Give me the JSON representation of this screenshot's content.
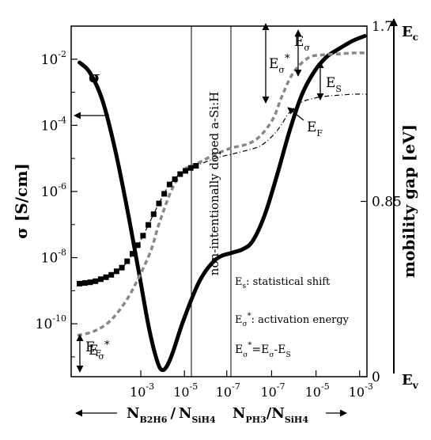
{
  "chart_data": {
    "type": "line",
    "xlabel_left": {
      "main": "N",
      "sub": "B2H6",
      "sep": "/",
      "main2": "N",
      "sub2": "SiH4"
    },
    "xlabel_right": {
      "main": "N",
      "sub": "PH3",
      "sep": "/",
      "main2": "N",
      "sub2": "SiH4"
    },
    "ylabel_left": "σ [S/cm]",
    "ylabel_right": "mobility gap [eV]",
    "left_axis": {
      "scale": "log",
      "ylim_exponent": [
        -11.6,
        -1
      ],
      "ticks": [
        {
          "base": "10",
          "exp": "-2",
          "value": -2
        },
        {
          "base": "10",
          "exp": "-4",
          "value": -4
        },
        {
          "base": "10",
          "exp": "-6",
          "value": -6
        },
        {
          "base": "10",
          "exp": "-8",
          "value": -8
        },
        {
          "base": "10",
          "exp": "-10",
          "value": -10
        }
      ]
    },
    "right_axis": {
      "ylim": [
        0,
        1.7
      ],
      "ticks": [
        {
          "label": "1.7",
          "value": 1.7
        },
        {
          "label": "0.85",
          "value": 0.85
        },
        {
          "label": "0",
          "value": 0
        }
      ]
    },
    "x_axis": {
      "position_scale": [
        0,
        10
      ],
      "ticks": [
        {
          "base": "10",
          "exp": "-3",
          "pos": 1.03
        },
        {
          "base": "10",
          "exp": "-5",
          "pos": 2.08
        },
        {
          "base": "10",
          "exp": "-7",
          "pos": 3.1
        },
        {
          "base": "10",
          "exp": "-7",
          "pos": 4.18
        },
        {
          "base": "10",
          "exp": "-5",
          "pos": 5.25
        },
        {
          "base": "10",
          "exp": "-3",
          "pos": 6.3
        }
      ]
    },
    "mobility_edges": {
      "top": {
        "main": "E",
        "sub": "c"
      },
      "bottom": {
        "main": "E",
        "sub": "v"
      }
    },
    "region_label": "non-intentionally doped a-Si:H",
    "annotations": {
      "sigma": "σ",
      "ef_left": {
        "main": "E",
        "sub": "F"
      },
      "ef_right": {
        "main": "E",
        "sub": "F"
      },
      "es": {
        "main": "E",
        "sub": "S"
      },
      "esigma_top": {
        "main": "E",
        "sub": "σ"
      },
      "esigma_star_top": {
        "main": "E",
        "sub": "σ",
        "sup": "*"
      },
      "esigma_star_left": {
        "main": "E",
        "sub": "σ",
        "sup": "*"
      }
    },
    "legend": {
      "line1": {
        "main": "E",
        "sub": "s",
        "text": ": statistical shift"
      },
      "line2": {
        "main": "E",
        "sub": "σ",
        "sup": "*",
        "text": ": activation energy"
      },
      "line3": {
        "a": "E",
        "a_sub": "σ",
        "a_sup": "*",
        "b": "=E",
        "b_sub": "σ",
        "c": "-E",
        "c_sub": "S"
      }
    },
    "series": [
      {
        "name": "σ",
        "style": "solid",
        "color": "#000000",
        "axis": "left",
        "x": [
          0.05,
          0.3,
          0.6,
          0.9,
          1.2,
          1.5,
          1.75,
          1.95,
          2.1,
          2.3,
          2.6,
          3.0,
          3.4,
          3.8,
          4.05,
          4.3,
          4.6,
          4.9,
          5.2,
          5.5,
          5.8,
          6.1,
          6.4,
          6.75,
          7.05
        ],
        "y": [
          -2.1,
          -2.4,
          -3.2,
          -4.6,
          -6.4,
          -8.4,
          -10.1,
          -11.1,
          -11.4,
          -11.0,
          -9.9,
          -8.7,
          -8.05,
          -7.85,
          -7.75,
          -7.5,
          -6.7,
          -5.5,
          -4.2,
          -3.1,
          -2.4,
          -1.95,
          -1.7,
          -1.45,
          -1.3
        ]
      },
      {
        "name": "",
        "style": "dashed-grey",
        "color": "#888888",
        "axis": "right",
        "x": [
          0.0,
          0.4,
          0.8,
          1.2,
          1.5,
          1.8,
          2.0,
          2.3,
          2.6,
          3.0,
          3.4,
          3.8,
          4.2,
          4.5,
          4.8,
          5.0,
          5.2,
          5.4,
          5.7,
          6.0,
          6.4,
          6.8,
          7.1
        ],
        "y": [
          0.2,
          0.22,
          0.27,
          0.37,
          0.48,
          0.61,
          0.74,
          0.9,
          1.0,
          1.04,
          1.08,
          1.11,
          1.13,
          1.17,
          1.25,
          1.35,
          1.44,
          1.5,
          1.55,
          1.56,
          1.565,
          1.57,
          1.57
        ]
      },
      {
        "name": "",
        "style": "dashdot-squares",
        "color": "#000000",
        "axis": "right",
        "x": [
          0.0,
          0.4,
          0.8,
          1.1,
          1.3,
          1.55,
          1.75,
          2.0,
          2.25,
          2.5,
          2.75,
          3.0,
          3.4,
          3.8,
          4.2,
          4.5,
          4.8,
          5.0,
          5.2,
          5.5,
          5.8,
          6.1,
          6.4,
          6.8,
          7.1
        ],
        "y": [
          0.45,
          0.46,
          0.49,
          0.53,
          0.58,
          0.66,
          0.74,
          0.84,
          0.93,
          0.98,
          1.01,
          1.03,
          1.06,
          1.08,
          1.1,
          1.12,
          1.17,
          1.22,
          1.28,
          1.33,
          1.35,
          1.36,
          1.365,
          1.37,
          1.37
        ],
        "markers_upto": 3.0
      }
    ]
  }
}
